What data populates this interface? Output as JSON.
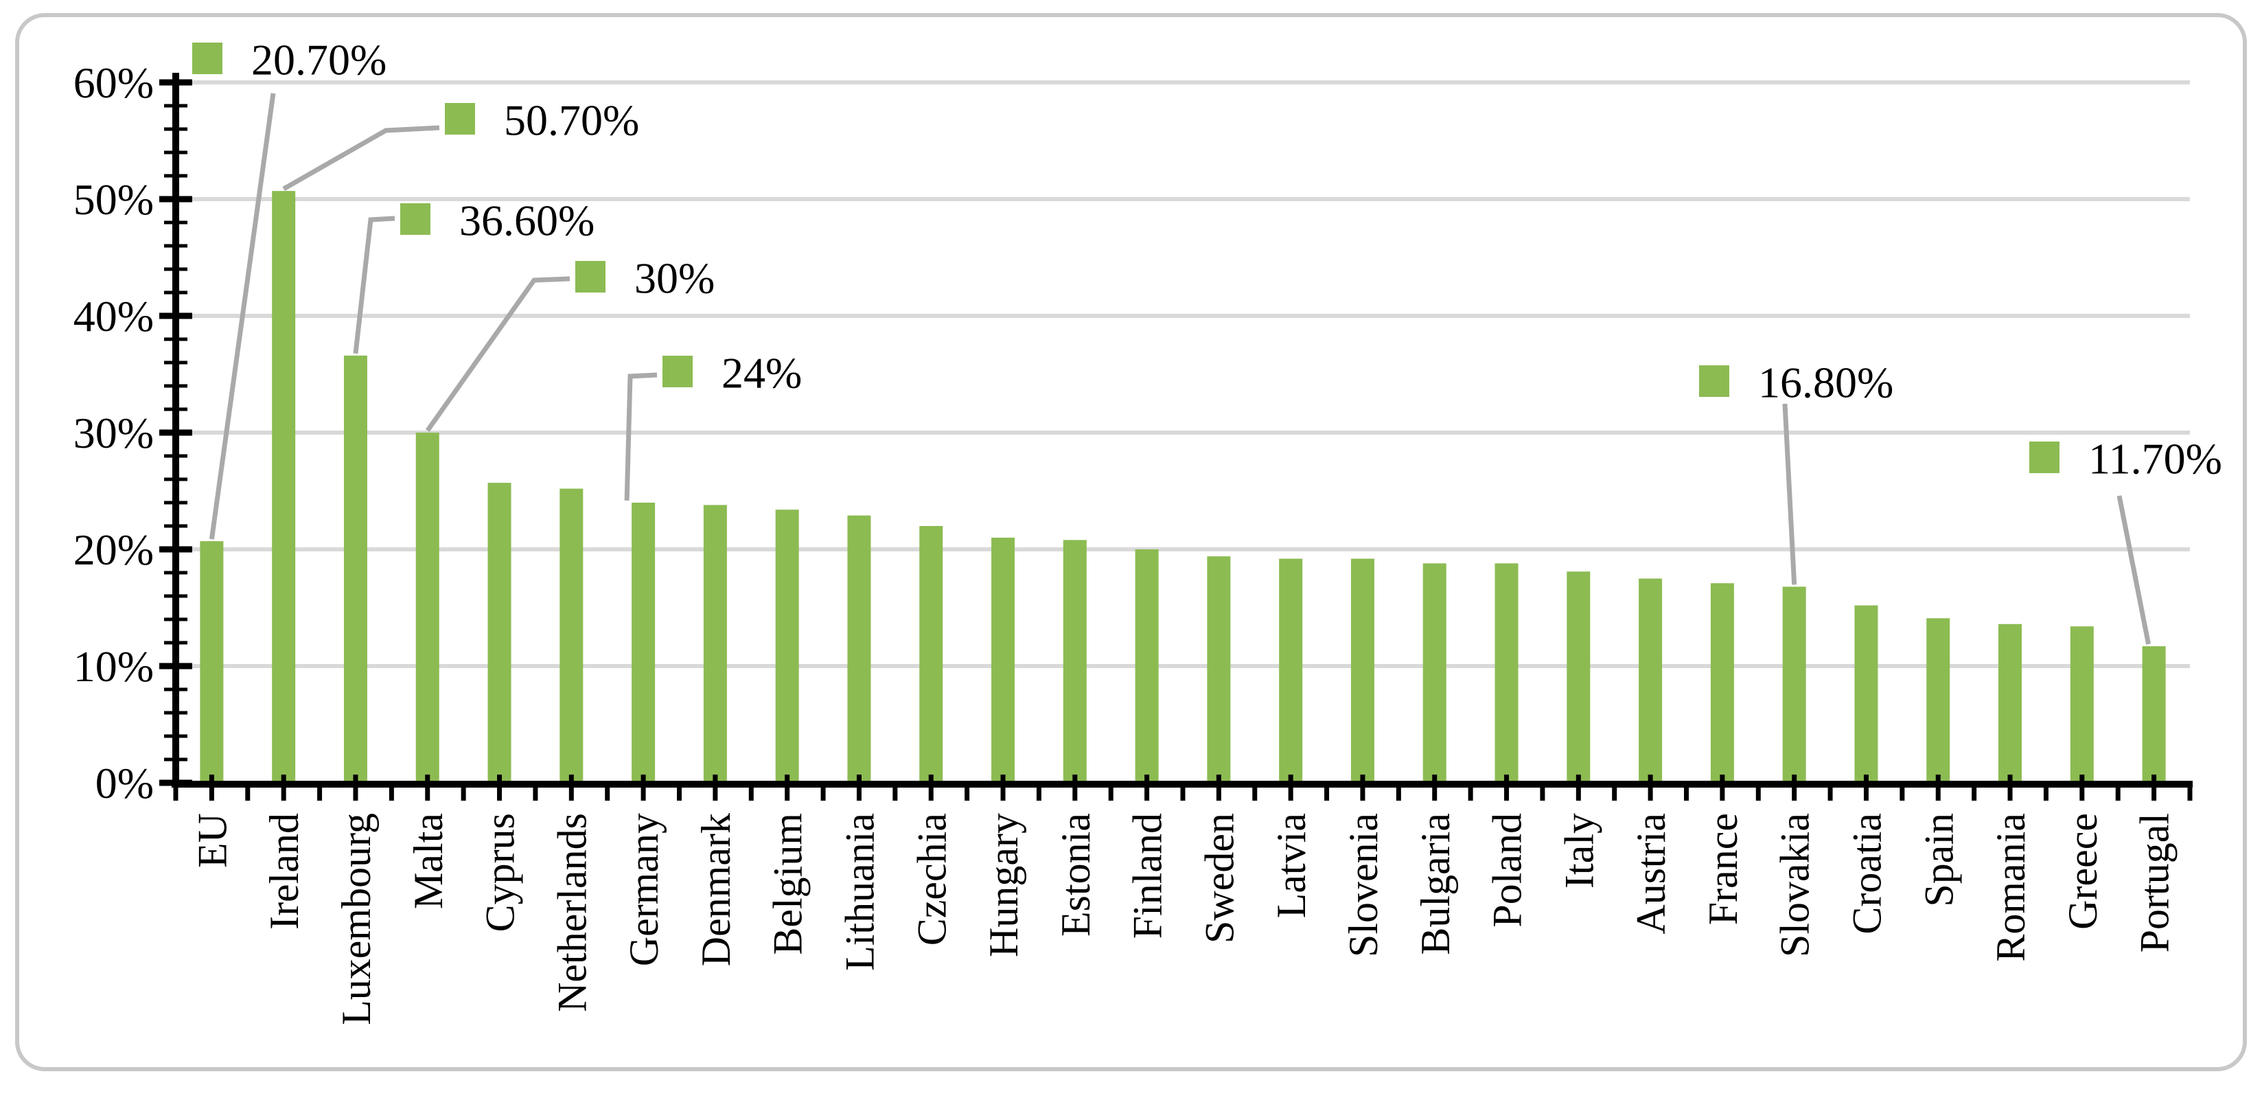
{
  "chart_data": {
    "type": "bar",
    "title": "",
    "xlabel": "",
    "ylabel": "",
    "categories": [
      "EU",
      "Ireland",
      "Luxembourg",
      "Malta",
      "Cyprus",
      "Netherlands",
      "Germany",
      "Denmark",
      "Belgium",
      "Lithuania",
      "Czechia",
      "Hungary",
      "Estonia",
      "Finland",
      "Sweden",
      "Latvia",
      "Slovenia",
      "Bulgaria",
      "Poland",
      "Italy",
      "Austria",
      "France",
      "Slovakia",
      "Croatia",
      "Spain",
      "Romania",
      "Greece",
      "Portugal"
    ],
    "values": [
      20.7,
      50.7,
      36.6,
      30,
      25.7,
      25.2,
      24,
      23.8,
      23.4,
      22.9,
      22,
      21,
      20.8,
      20,
      19.4,
      19.2,
      19.2,
      18.8,
      18.8,
      18.1,
      17.5,
      17.1,
      16.8,
      15.2,
      14.1,
      13.6,
      13.4,
      11.7
    ],
    "ylim": [
      0,
      60
    ],
    "y_major_step": 10,
    "y_minor_step": 2,
    "y_tick_labels": [
      "0%",
      "10%",
      "20%",
      "30%",
      "40%",
      "50%",
      "60%"
    ],
    "grid": "horizontal-major",
    "legend_position": "none",
    "data_labels": [
      {
        "category": "EU",
        "label": "20.70%"
      },
      {
        "category": "Ireland",
        "label": "50.70%"
      },
      {
        "category": "Luxembourg",
        "label": "36.60%"
      },
      {
        "category": "Malta",
        "label": "30%"
      },
      {
        "category": "Germany",
        "label": "24%"
      },
      {
        "category": "Slovakia",
        "label": "16.80%"
      },
      {
        "category": "Portugal",
        "label": "11.70%"
      }
    ],
    "colors": {
      "bar": "#8CBB52",
      "gridline": "#D9D9D9",
      "axis": "#000000",
      "leader_line": "#A9A9A9",
      "frame_border": "#C8C8C8",
      "background": "#FFFFFF",
      "text": "#000000"
    }
  }
}
